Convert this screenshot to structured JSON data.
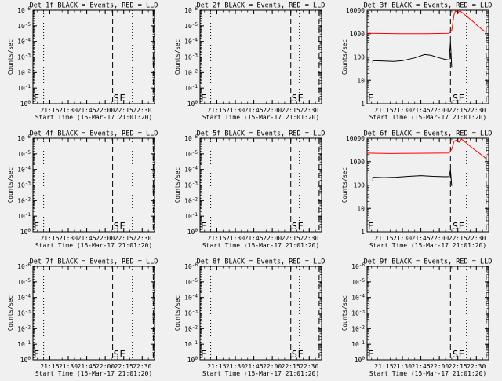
{
  "figure": {
    "x_tick_labels": [
      "21:15",
      "21:30",
      "21:45",
      "22:00",
      "22:15",
      "22:30"
    ],
    "xlabel": "Start Time (15-Mar-17 21:01:20)",
    "ylabel": "Counts/sec",
    "marker_start": "S",
    "marker_end": "E",
    "colors": {
      "events": "#000000",
      "lld": "#ff0000",
      "background": "#f0f0f0"
    }
  },
  "chart_data": [
    {
      "type": "line",
      "title": "Det 1f BLACK = Events, RED = LLD",
      "xlabel": "Start Time (15-Mar-17 21:01:20)",
      "ylabel": "Counts/sec",
      "x_range": [
        "21:01:20",
        "22:40"
      ],
      "ylim": [
        1,
        1e-08
      ],
      "y_tick_labels": [
        "10^0",
        "10^-1",
        "10^-2",
        "10^-3",
        "10^-4",
        "10^-5",
        "10^-6"
      ],
      "log_scale": true,
      "series": [],
      "markers": {
        "dotted": [
          "21:02",
          "21:10",
          "22:22"
        ],
        "dashed": [
          "22:06",
          "22:39"
        ],
        "S": "22:06",
        "E": "22:11"
      }
    },
    {
      "type": "line",
      "title": "Det 2f BLACK = Events, RED = LLD",
      "xlabel": "Start Time (15-Mar-17 21:01:20)",
      "ylabel": "Counts/sec",
      "x_range": [
        "21:01:20",
        "22:40"
      ],
      "ylim": [
        1,
        1e-08
      ],
      "y_tick_labels": [
        "10^0",
        "10^-1",
        "10^-2",
        "10^-3",
        "10^-4",
        "10^-5",
        "10^-6"
      ],
      "log_scale": true,
      "series": [],
      "markers": {
        "dotted": [
          "21:02",
          "21:10",
          "22:22"
        ],
        "dashed": [
          "22:15",
          "22:38"
        ],
        "S": "22:15",
        "E": "22:20"
      }
    },
    {
      "type": "line",
      "title": "Det 3f BLACK = Events, RED = LLD",
      "xlabel": "Start Time (15-Mar-17 21:01:20)",
      "ylabel": "Counts/sec",
      "x_range": [
        "21:01:20",
        "22:40"
      ],
      "ylim": [
        1,
        12000
      ],
      "y_tick_labels": [
        "1",
        "10",
        "100",
        "1000",
        "10000"
      ],
      "log_scale": true,
      "series": [
        {
          "color": "#ff0000",
          "points": [
            [
              "21:01:20",
              1200
            ],
            [
              "21:10",
              1180
            ],
            [
              "21:30",
              1140
            ],
            [
              "21:50",
              1150
            ],
            [
              "22:08",
              1190
            ],
            [
              "22:10",
              1600
            ],
            [
              "22:11",
              3500
            ],
            [
              "22:12",
              8000
            ],
            [
              "22:13",
              11000
            ],
            [
              "22:14",
              10500
            ],
            [
              "22:15",
              9000
            ],
            [
              "22:16",
              10500
            ],
            [
              "22:17",
              11000
            ],
            [
              "22:19",
              9000
            ],
            [
              "22:23",
              6000
            ],
            [
              "22:27",
              4000
            ],
            [
              "22:31",
              2500
            ],
            [
              "22:35",
              1700
            ],
            [
              "22:37",
              1400
            ]
          ]
        },
        {
          "color": "#000000",
          "points": [
            [
              "21:06",
              60
            ],
            [
              "21:06",
              75
            ],
            [
              "21:15",
              72
            ],
            [
              "21:23",
              70
            ],
            [
              "21:30",
              75
            ],
            [
              "21:40",
              100
            ],
            [
              "21:48",
              140
            ],
            [
              "21:53",
              130
            ],
            [
              "22:00",
              100
            ],
            [
              "22:05",
              85
            ],
            [
              "22:08",
              80
            ],
            [
              "22:09",
              500
            ],
            [
              "22:10",
              40
            ]
          ]
        }
      ],
      "markers": {
        "dotted": [
          "21:03",
          "22:22"
        ],
        "dashed": [
          "22:09",
          "22:38"
        ],
        "S": "22:10",
        "E": "22:15"
      }
    },
    {
      "type": "line",
      "title": "Det 4f BLACK = Events, RED = LLD",
      "xlabel": "Start Time (15-Mar-17 21:01:20)",
      "ylabel": "Counts/sec",
      "x_range": [
        "21:01:20",
        "22:40"
      ],
      "ylim": [
        1,
        1e-08
      ],
      "y_tick_labels": [
        "10^0",
        "10^-1",
        "10^-2",
        "10^-3",
        "10^-4",
        "10^-5",
        "10^-6"
      ],
      "log_scale": true,
      "series": [],
      "markers": {
        "dotted": [
          "21:02",
          "21:10",
          "22:22"
        ],
        "dashed": [
          "22:06",
          "22:39"
        ],
        "S": "22:06",
        "E": "22:11"
      }
    },
    {
      "type": "line",
      "title": "Det 5f BLACK = Events, RED = LLD",
      "xlabel": "Start Time (15-Mar-17 21:01:20)",
      "ylabel": "Counts/sec",
      "x_range": [
        "21:01:20",
        "22:40"
      ],
      "ylim": [
        1,
        1e-08
      ],
      "y_tick_labels": [
        "10^0",
        "10^-1",
        "10^-2",
        "10^-3",
        "10^-4",
        "10^-5",
        "10^-6"
      ],
      "log_scale": true,
      "series": [],
      "markers": {
        "dotted": [
          "21:02",
          "21:10",
          "22:22"
        ],
        "dashed": [
          "22:15",
          "22:38"
        ],
        "S": "22:15",
        "E": "22:20"
      }
    },
    {
      "type": "line",
      "title": "Det 6f BLACK = Events, RED = LLD",
      "xlabel": "Start Time (15-Mar-17 21:01:20)",
      "ylabel": "Counts/sec",
      "x_range": [
        "21:01:20",
        "22:40"
      ],
      "ylim": [
        1,
        12000
      ],
      "y_tick_labels": [
        "1",
        "10",
        "100",
        "1000",
        "10000"
      ],
      "log_scale": true,
      "series": [
        {
          "color": "#ff0000",
          "points": [
            [
              "21:01:20",
              2700
            ],
            [
              "21:20",
              2600
            ],
            [
              "21:40",
              2650
            ],
            [
              "22:00",
              2700
            ],
            [
              "22:08",
              2750
            ],
            [
              "22:10",
              4000
            ],
            [
              "22:12",
              9000
            ],
            [
              "22:14",
              10000
            ],
            [
              "22:16",
              8000
            ],
            [
              "22:18",
              11000
            ],
            [
              "22:20",
              9000
            ],
            [
              "22:24",
              6000
            ],
            [
              "22:28",
              4000
            ],
            [
              "22:32",
              2800
            ],
            [
              "22:36",
              1900
            ],
            [
              "22:38",
              1500
            ]
          ]
        },
        {
          "color": "#000000",
          "points": [
            [
              "21:06",
              160
            ],
            [
              "21:06",
              240
            ],
            [
              "21:15",
              230
            ],
            [
              "21:25",
              240
            ],
            [
              "21:35",
              260
            ],
            [
              "21:45",
              280
            ],
            [
              "21:55",
              260
            ],
            [
              "22:05",
              250
            ],
            [
              "22:08",
              255
            ],
            [
              "22:09",
              500
            ],
            [
              "22:10",
              100
            ]
          ]
        }
      ],
      "markers": {
        "dotted": [
          "21:03",
          "22:22"
        ],
        "dashed": [
          "22:09",
          "22:38"
        ],
        "S": "22:10",
        "E": "22:15"
      }
    },
    {
      "type": "line",
      "title": "Det 7f BLACK = Events, RED = LLD",
      "xlabel": "Start Time (15-Mar-17 21:01:20)",
      "ylabel": "Counts/sec",
      "x_range": [
        "21:01:20",
        "22:40"
      ],
      "ylim": [
        1,
        1e-08
      ],
      "y_tick_labels": [
        "10^0",
        "10^-1",
        "10^-2",
        "10^-3",
        "10^-4",
        "10^-5",
        "10^-6"
      ],
      "log_scale": true,
      "series": [],
      "markers": {
        "dotted": [
          "21:02",
          "21:10",
          "22:22"
        ],
        "dashed": [
          "22:06",
          "22:39"
        ],
        "S": "22:06",
        "E": "22:11"
      }
    },
    {
      "type": "line",
      "title": "Det 8f BLACK = Events, RED = LLD",
      "xlabel": "Start Time (15-Mar-17 21:01:20)",
      "ylabel": "Counts/sec",
      "x_range": [
        "21:01:20",
        "22:40"
      ],
      "ylim": [
        1,
        1e-08
      ],
      "y_tick_labels": [
        "10^0",
        "10^-1",
        "10^-2",
        "10^-3",
        "10^-4",
        "10^-5",
        "10^-6"
      ],
      "log_scale": true,
      "series": [],
      "markers": {
        "dotted": [
          "21:02",
          "21:10",
          "22:22"
        ],
        "dashed": [
          "22:15",
          "22:38"
        ],
        "S": "22:15",
        "E": "22:20"
      }
    },
    {
      "type": "line",
      "title": "Det 9f BLACK = Events, RED = LLD",
      "xlabel": "Start Time (15-Mar-17 21:01:20)",
      "ylabel": "Counts/sec",
      "x_range": [
        "21:01:20",
        "22:40"
      ],
      "ylim": [
        1,
        1e-08
      ],
      "y_tick_labels": [
        "10^0",
        "10^-1",
        "10^-2",
        "10^-3",
        "10^-4",
        "10^-5",
        "10^-6"
      ],
      "log_scale": true,
      "series": [],
      "markers": {
        "dotted": [
          "21:03",
          "22:22"
        ],
        "dashed": [
          "22:09",
          "22:38"
        ],
        "S": "22:10",
        "E": "22:15"
      }
    }
  ]
}
